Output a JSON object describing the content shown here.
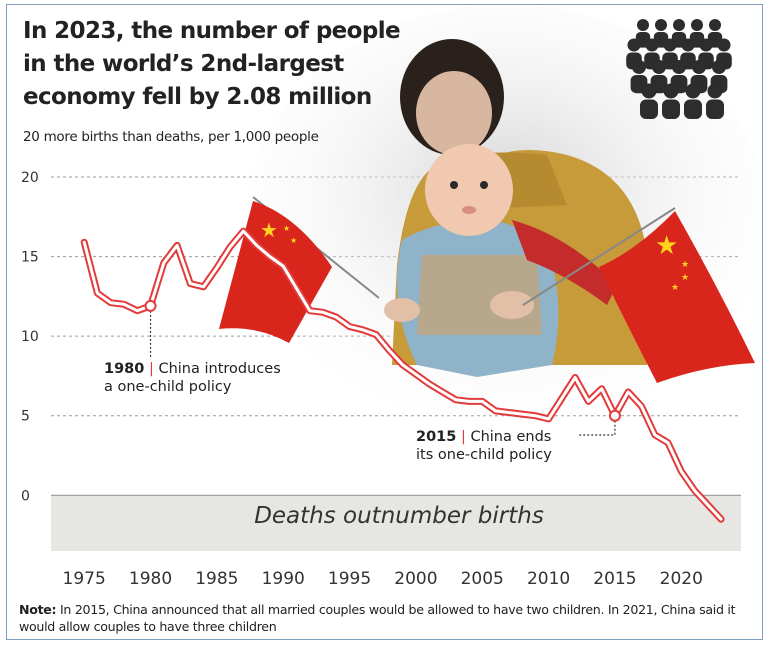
{
  "header": {
    "title": "In 2023, the number of people in the world’s 2nd-largest economy fell by 2.08 million",
    "subtitle": "20 more births than deaths, per 1,000 people"
  },
  "icons": {
    "crowd": "crowd-icon",
    "photo": "mother-and-baby-with-flags-photo"
  },
  "colors": {
    "line_outer": "#e23b3b",
    "line_inner": "#ffffff",
    "grid": "#9a9a9a",
    "negative_band": "#e6e6e3",
    "flag_red": "#d9261c",
    "flag_star": "#ffd21f"
  },
  "annotations": [
    {
      "year": 1980,
      "value": 11.9,
      "year_label": "1980",
      "line1": "China introduces",
      "line2": "a one-child policy"
    },
    {
      "year": 2015,
      "value": 5.0,
      "year_label": "2015",
      "line1": "China ends",
      "line2": "its one-child policy"
    }
  ],
  "negative_region_label": "Deaths outnumber births",
  "note": {
    "label": "Note:",
    "text": "In 2015, China announced that all married couples would be allowed to have two children. In 2021, China said it would allow couples to have three children"
  },
  "chart_data": {
    "type": "line",
    "title": "In 2023, the number of people in the world’s 2nd-largest economy fell by 2.08 million",
    "subtitle": "20 more births than deaths, per 1,000 people",
    "xlabel": "",
    "ylabel": "",
    "x_ticks": [
      1975,
      1980,
      1985,
      1990,
      1995,
      2000,
      2005,
      2010,
      2015,
      2020
    ],
    "y_ticks": [
      0,
      5,
      10,
      15,
      20
    ],
    "xlim": [
      1972.5,
      2024.5
    ],
    "ylim": [
      -3.5,
      20
    ],
    "grid": "horizontal dashed",
    "x": [
      1975,
      1976,
      1977,
      1978,
      1979,
      1980,
      1981,
      1982,
      1983,
      1984,
      1985,
      1986,
      1987,
      1988,
      1989,
      1990,
      1991,
      1992,
      1993,
      1994,
      1995,
      1996,
      1997,
      1998,
      1999,
      2000,
      2001,
      2002,
      2003,
      2004,
      2005,
      2006,
      2007,
      2008,
      2009,
      2010,
      2011,
      2012,
      2013,
      2014,
      2015,
      2016,
      2017,
      2018,
      2019,
      2020,
      2021,
      2022,
      2023
    ],
    "values": [
      15.9,
      12.7,
      12.1,
      12.0,
      11.6,
      11.9,
      14.6,
      15.7,
      13.3,
      13.1,
      14.3,
      15.6,
      16.6,
      15.7,
      15.0,
      14.4,
      13.0,
      11.6,
      11.5,
      11.2,
      10.6,
      10.4,
      10.1,
      9.1,
      8.2,
      7.6,
      7.0,
      6.5,
      6.0,
      5.9,
      5.9,
      5.3,
      5.2,
      5.1,
      5.0,
      4.8,
      6.1,
      7.4,
      5.9,
      6.7,
      5.0,
      6.5,
      5.6,
      3.8,
      3.3,
      1.5,
      0.3,
      -0.6,
      -1.5
    ]
  }
}
